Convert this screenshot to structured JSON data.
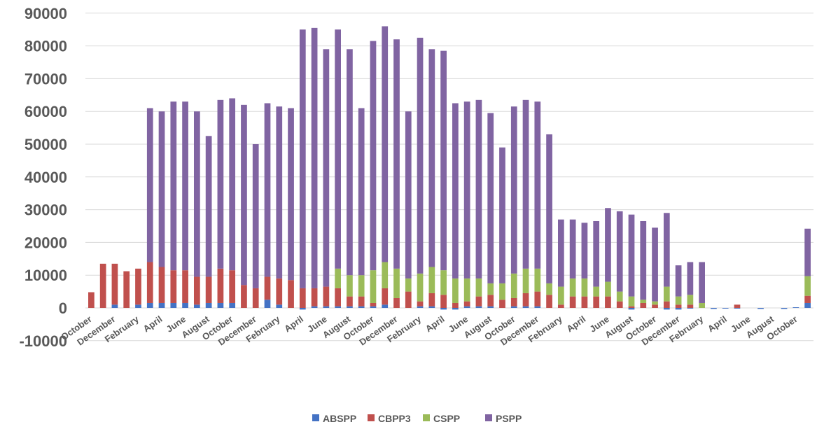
{
  "chart_data": {
    "type": "bar",
    "stacked": true,
    "title": "",
    "xlabel": "",
    "ylabel": "",
    "ylim": [
      -10000,
      90000
    ],
    "yticks": [
      -10000,
      0,
      10000,
      20000,
      30000,
      40000,
      50000,
      60000,
      70000,
      80000,
      90000
    ],
    "grid": true,
    "legend_position": "bottom",
    "x_tick_labels": [
      "October",
      "December",
      "February",
      "April",
      "June",
      "August",
      "October",
      "December",
      "February",
      "April",
      "June",
      "August",
      "October",
      "December",
      "February",
      "April",
      "June",
      "August",
      "October",
      "December",
      "February",
      "April",
      "June",
      "August",
      "October",
      "December",
      "February",
      "April",
      "June",
      "August",
      "October"
    ],
    "series": [
      {
        "name": "ABSPP",
        "color": "#4472c4",
        "values": [
          0,
          0,
          1000,
          0,
          1000,
          1500,
          1500,
          1500,
          1500,
          1000,
          1500,
          1500,
          1500,
          0,
          0,
          2500,
          1000,
          0,
          -500,
          500,
          500,
          500,
          500,
          500,
          500,
          1000,
          0,
          0,
          500,
          500,
          -500,
          -500,
          500,
          500,
          500,
          0,
          500,
          500,
          500,
          0,
          0,
          0,
          0,
          0,
          0,
          0,
          -500,
          0,
          0,
          -500,
          -500,
          -200,
          0,
          -300,
          -200,
          -200,
          0,
          -300,
          0,
          -300,
          200,
          1500
        ],
        "data_labels": []
      },
      {
        "name": "CBPP3",
        "color": "#c0504d",
        "values": [
          4800,
          13500,
          12500,
          11200,
          11000,
          12500,
          11000,
          10000,
          10000,
          8500,
          8000,
          10500,
          10000,
          7000,
          6000,
          7000,
          8000,
          8500,
          6000,
          5500,
          6000,
          5500,
          3000,
          3000,
          1000,
          5000,
          3000,
          5000,
          1500,
          4000,
          4000,
          1500,
          1500,
          3000,
          3500,
          2500,
          2500,
          4000,
          4500,
          4000,
          1000,
          3500,
          3500,
          3500,
          3500,
          2000,
          500,
          1500,
          1000,
          2000,
          1000,
          1000,
          0,
          0,
          0,
          1000,
          0,
          0,
          0,
          0,
          0,
          2200
        ]
      },
      {
        "name": "CSPP",
        "color": "#9bbb59",
        "values": [
          0,
          0,
          0,
          0,
          0,
          0,
          0,
          0,
          0,
          0,
          0,
          0,
          0,
          0,
          0,
          0,
          0,
          0,
          0,
          0,
          0,
          6000,
          6500,
          6500,
          10000,
          8000,
          9000,
          4000,
          8500,
          8000,
          7500,
          7500,
          7000,
          5500,
          3500,
          5000,
          7500,
          7500,
          7000,
          3500,
          5500,
          5500,
          5500,
          3000,
          4500,
          3000,
          3000,
          1000,
          1000,
          4500,
          2500,
          3000,
          1500,
          0,
          0,
          0,
          0,
          0,
          0,
          0,
          0,
          6000
        ]
      },
      {
        "name": "PSPP",
        "color": "#8064a2",
        "values": [
          0,
          0,
          0,
          0,
          0,
          47000,
          47500,
          51500,
          51500,
          50500,
          43000,
          51500,
          52500,
          55000,
          44000,
          53000,
          52500,
          52500,
          79000,
          79500,
          72500,
          73000,
          69000,
          51000,
          70000,
          72000,
          70000,
          51000,
          72000,
          66500,
          67000,
          53500,
          54000,
          54500,
          52000,
          41500,
          51000,
          51500,
          51000,
          45500,
          20500,
          18000,
          17000,
          20000,
          22500,
          24500,
          25000,
          24000,
          22500,
          22500,
          9500,
          10000,
          12500,
          0,
          0,
          0,
          0,
          0,
          0,
          0,
          0,
          14500
        ]
      }
    ]
  },
  "legend": {
    "items": [
      {
        "label": "ABSPP",
        "color": "#4472c4"
      },
      {
        "label": "CBPP3",
        "color": "#c0504d"
      },
      {
        "label": "CSPP",
        "color": "#9bbb59"
      },
      {
        "label": "PSPP",
        "color": "#8064a2"
      }
    ]
  }
}
